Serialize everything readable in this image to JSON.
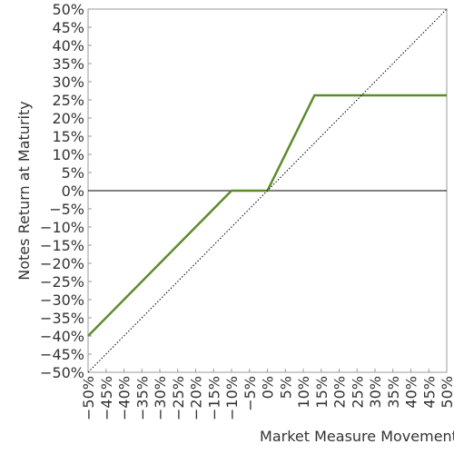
{
  "chart_data": {
    "type": "line",
    "xlabel": "Market Measure Movement",
    "ylabel": "Notes Return at Maturity",
    "xlim": [
      -50,
      50
    ],
    "ylim": [
      -50,
      50
    ],
    "xticks": [
      {
        "value": -50,
        "label": "−50%"
      },
      {
        "value": -45,
        "label": "−45%"
      },
      {
        "value": -40,
        "label": "−40%"
      },
      {
        "value": -35,
        "label": "−35%"
      },
      {
        "value": -30,
        "label": "−30%"
      },
      {
        "value": -25,
        "label": "−25%"
      },
      {
        "value": -20,
        "label": "−20%"
      },
      {
        "value": -15,
        "label": "−15%"
      },
      {
        "value": -10,
        "label": "−10%"
      },
      {
        "value": -5,
        "label": "−5%"
      },
      {
        "value": 0,
        "label": "0%"
      },
      {
        "value": 5,
        "label": "5%"
      },
      {
        "value": 10,
        "label": "10%"
      },
      {
        "value": 15,
        "label": "15%"
      },
      {
        "value": 20,
        "label": "20%"
      },
      {
        "value": 25,
        "label": "25%"
      },
      {
        "value": 30,
        "label": "30%"
      },
      {
        "value": 35,
        "label": "35%"
      },
      {
        "value": 40,
        "label": "40%"
      },
      {
        "value": 45,
        "label": "45%"
      },
      {
        "value": 50,
        "label": "50%"
      }
    ],
    "yticks": [
      {
        "value": -50,
        "label": "−50%"
      },
      {
        "value": -45,
        "label": "−45%"
      },
      {
        "value": -40,
        "label": "−40%"
      },
      {
        "value": -35,
        "label": "−35%"
      },
      {
        "value": -30,
        "label": "−30%"
      },
      {
        "value": -25,
        "label": "−25%"
      },
      {
        "value": -20,
        "label": "−20%"
      },
      {
        "value": -15,
        "label": "−15%"
      },
      {
        "value": -10,
        "label": "−10%"
      },
      {
        "value": -5,
        "label": "−5%"
      },
      {
        "value": 0,
        "label": "0%"
      },
      {
        "value": 5,
        "label": "5%"
      },
      {
        "value": 10,
        "label": "10%"
      },
      {
        "value": 15,
        "label": "15%"
      },
      {
        "value": 20,
        "label": "20%"
      },
      {
        "value": 25,
        "label": "25%"
      },
      {
        "value": 30,
        "label": "30%"
      },
      {
        "value": 35,
        "label": "35%"
      },
      {
        "value": 40,
        "label": "40%"
      },
      {
        "value": 45,
        "label": "45%"
      },
      {
        "value": 50,
        "label": "50%"
      }
    ],
    "series": [
      {
        "color": "#5b8c2a",
        "style": "solid",
        "x": [
          -50,
          -10,
          0,
          13.125,
          50
        ],
        "values": [
          -40,
          0,
          0,
          26.25,
          26.25
        ]
      },
      {
        "color": "#000000",
        "style": "dotted",
        "x": [
          -50,
          50
        ],
        "values": [
          -50,
          50
        ]
      }
    ]
  }
}
